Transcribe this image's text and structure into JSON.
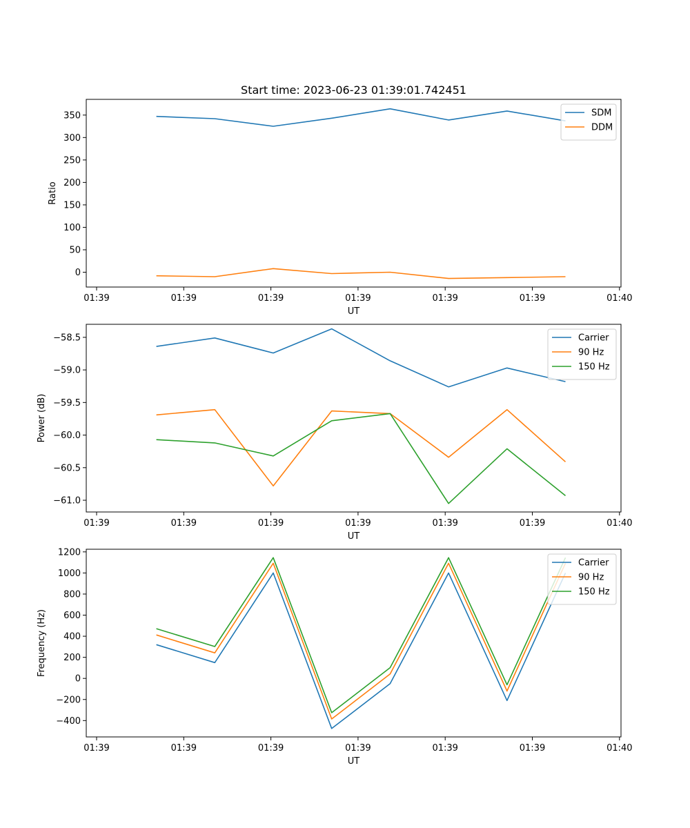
{
  "title": "Start time: 2023-06-23 01:39:01.742451",
  "colors": {
    "blue": "#1f77b4",
    "orange": "#ff7f0e",
    "green": "#2ca02c"
  },
  "chart_data": [
    {
      "type": "line",
      "xlabel": "UT",
      "ylabel": "Ratio",
      "x_tick_labels": [
        "01:39",
        "01:39",
        "01:39",
        "01:39",
        "01:39",
        "01:39",
        "01:40"
      ],
      "yticks": [
        0,
        50,
        100,
        150,
        200,
        250,
        300,
        350
      ],
      "ylim": [
        -33,
        385
      ],
      "legend_loc": "upper right",
      "series": [
        {
          "name": "SDM",
          "color": "#1f77b4",
          "values": [
            347,
            342,
            325,
            343,
            364,
            339,
            359,
            337
          ]
        },
        {
          "name": "DDM",
          "color": "#ff7f0e",
          "values": [
            -8,
            -10,
            8,
            -3,
            0,
            -14,
            -12,
            -10
          ]
        }
      ]
    },
    {
      "type": "line",
      "xlabel": "UT",
      "ylabel": "Power (dB)",
      "x_tick_labels": [
        "01:39",
        "01:39",
        "01:39",
        "01:39",
        "01:39",
        "01:39",
        "01:40"
      ],
      "yticks": [
        -61.0,
        -60.5,
        -60.0,
        -59.5,
        -59.0,
        -58.5
      ],
      "ytick_labels": [
        "−61.0",
        "−60.5",
        "−60.0",
        "−59.5",
        "−59.0",
        "−58.5"
      ],
      "ylim": [
        -61.18,
        -58.3
      ],
      "legend_loc": "upper right",
      "series": [
        {
          "name": "Carrier",
          "color": "#1f77b4",
          "values": [
            -58.64,
            -58.51,
            -58.74,
            -58.37,
            -58.86,
            -59.26,
            -58.97,
            -59.18
          ]
        },
        {
          "name": "90 Hz",
          "color": "#ff7f0e",
          "values": [
            -59.69,
            -59.61,
            -60.78,
            -59.63,
            -59.67,
            -60.34,
            -59.61,
            -60.41
          ]
        },
        {
          "name": "150 Hz",
          "color": "#2ca02c",
          "values": [
            -60.07,
            -60.12,
            -60.32,
            -59.78,
            -59.67,
            -61.05,
            -60.21,
            -60.93
          ]
        }
      ]
    },
    {
      "type": "line",
      "xlabel": "UT",
      "ylabel": "Frequency (Hz)",
      "x_tick_labels": [
        "01:39",
        "01:39",
        "01:39",
        "01:39",
        "01:39",
        "01:39",
        "01:40"
      ],
      "yticks": [
        -400,
        -200,
        0,
        200,
        400,
        600,
        800,
        1000,
        1200
      ],
      "ytick_labels": [
        "−400",
        "−200",
        "0",
        "200",
        "400",
        "600",
        "800",
        "1000",
        "1200"
      ],
      "ylim": [
        -555,
        1225
      ],
      "legend_loc": "upper right",
      "series": [
        {
          "name": "Carrier",
          "color": "#1f77b4",
          "values": [
            320,
            150,
            1000,
            -475,
            -50,
            1000,
            -210,
            1000
          ]
        },
        {
          "name": "90 Hz",
          "color": "#ff7f0e",
          "values": [
            412,
            242,
            1092,
            -385,
            42,
            1092,
            -120,
            1092
          ]
        },
        {
          "name": "150 Hz",
          "color": "#2ca02c",
          "values": [
            472,
            302,
            1145,
            -325,
            102,
            1145,
            -60,
            1145
          ]
        }
      ]
    }
  ]
}
